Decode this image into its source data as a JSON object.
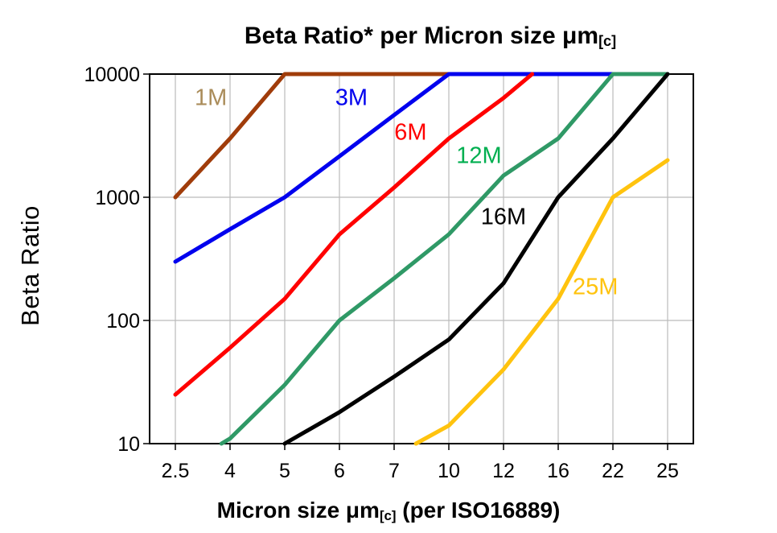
{
  "title": {
    "main": "Beta Ratio* per Micron size ",
    "mu": "μm",
    "sub": "[c]"
  },
  "y_axis": {
    "label": "Beta Ratio",
    "scale": "log",
    "tick_labels": [
      "10000",
      "1000",
      "100",
      "10"
    ],
    "tick_values": [
      10000,
      1000,
      100,
      10
    ]
  },
  "x_axis": {
    "label_pre": "Micron size ",
    "label_mu": "μm",
    "label_sub": "[c]",
    "label_post": " (per ISO16889)",
    "tick_labels": [
      "2.5",
      "4",
      "5",
      "6",
      "7",
      "10",
      "12",
      "16",
      "22",
      "25"
    ]
  },
  "colors": {
    "grid": "#bbbbbb",
    "axis": "#000000",
    "background": "#ffffff"
  },
  "chart_data": {
    "type": "line",
    "x_categories": [
      2.5,
      4,
      5,
      6,
      7,
      10,
      12,
      16,
      22,
      25
    ],
    "x_axis_type": "categorical",
    "y_scale": "log",
    "ylim": [
      10,
      10000
    ],
    "grid": true,
    "legend": "inline-labels",
    "note": "values above 10000 or below 10 are clipped at the axis border",
    "series": [
      {
        "name": "1M",
        "color": "#A03C0A",
        "label_color": "#AA8C5A",
        "values": [
          1000,
          3000,
          10000,
          10000,
          10000,
          10000,
          null,
          null,
          null,
          null
        ],
        "label_at": {
          "x": 0.65,
          "y": 6500
        }
      },
      {
        "name": "3M",
        "color": "#0000EE",
        "label_color": "#0000EE",
        "values": [
          300,
          550,
          1000,
          2150,
          4650,
          10000,
          10000,
          10000,
          10000,
          null
        ],
        "label_at": {
          "x": 3.22,
          "y": 6500
        }
      },
      {
        "name": "6M",
        "color": "#FF0000",
        "label_color": "#FF0000",
        "values": [
          25,
          60,
          150,
          500,
          1200,
          3000,
          6400,
          15000,
          null,
          null
        ],
        "label_at": {
          "x": 4.3,
          "y": 3400
        }
      },
      {
        "name": "12M",
        "color": "#2F9966",
        "label_color": "#00AF50",
        "values": [
          6,
          11,
          30,
          100,
          220,
          500,
          1500,
          3000,
          10000,
          10000
        ],
        "label_at": {
          "x": 5.55,
          "y": 2200
        }
      },
      {
        "name": "16M",
        "color": "#000000",
        "label_color": "#000000",
        "values": [
          null,
          null,
          10,
          18,
          35,
          70,
          200,
          1000,
          3000,
          10000
        ],
        "label_at": {
          "x": 6.0,
          "y": 700
        }
      },
      {
        "name": "25M",
        "color": "#FFC30E",
        "label_color": "#FFC30E",
        "values": [
          null,
          null,
          null,
          null,
          8,
          14,
          40,
          150,
          1000,
          2000
        ],
        "label_at": {
          "x": 7.68,
          "y": 190
        }
      }
    ]
  }
}
